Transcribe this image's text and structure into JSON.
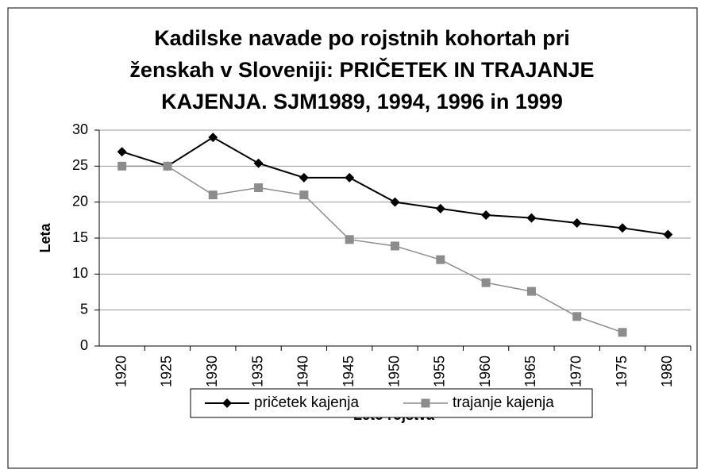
{
  "chart_data": {
    "type": "line",
    "title": [
      "Kadilske navade po rojstnih kohortah pri",
      "ženskah v Sloveniji: PRIČETEK IN TRAJANJE",
      "KAJENJA. SJM1989, 1994, 1996 in 1999"
    ],
    "x_label": "Leto rojstva",
    "y_label": "Leta",
    "categories": [
      "1920",
      "1925",
      "1930",
      "1935",
      "1940",
      "1945",
      "1950",
      "1955",
      "1960",
      "1965",
      "1970",
      "1975",
      "1980"
    ],
    "series": [
      {
        "name": "pričetek kajenja",
        "color": "#000000",
        "marker": "diamond",
        "values": [
          27,
          25,
          29,
          25.4,
          23.4,
          23.4,
          20,
          19.1,
          18.2,
          17.8,
          17.1,
          16.4,
          15.5
        ]
      },
      {
        "name": "trajanje kajenja",
        "color": "#8c8c8c",
        "marker": "square",
        "values": [
          25,
          25,
          21,
          22,
          21,
          14.8,
          13.9,
          12,
          8.8,
          7.6,
          4.1,
          1.9,
          null
        ]
      }
    ],
    "ylim": [
      0,
      30
    ],
    "yticks": [
      0,
      5,
      10,
      15,
      20,
      25,
      30
    ],
    "grid": true,
    "legend": "bottom"
  }
}
